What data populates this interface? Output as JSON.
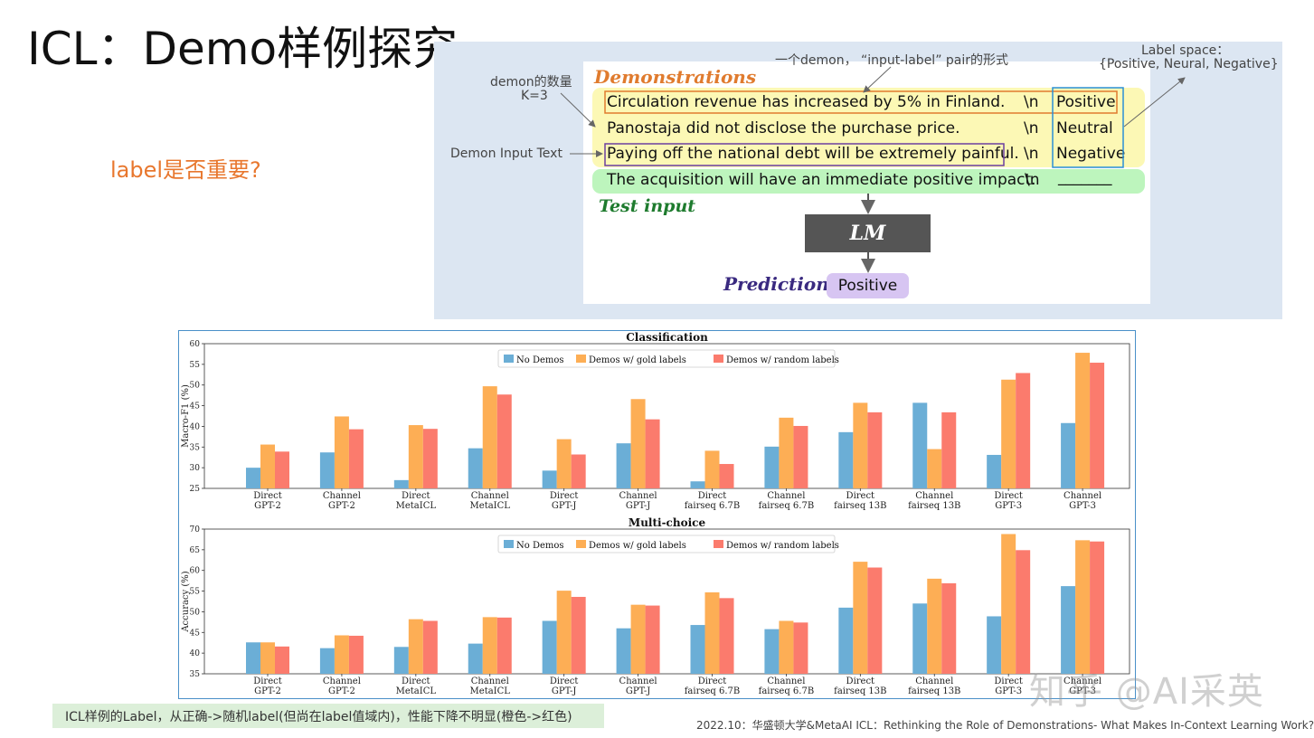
{
  "slide": {
    "title": "ICL：Demo样例探究",
    "question": "label是否重要?",
    "footer_note": "ICL样例的Label，从正确->随机label(但尚在label值域内)，性能下降不明显(橙色->红色)",
    "citation": "2022.10：华盛顿大学&MetaAI ICL：Rethinking the Role of Demonstrations- What Makes In-Context Learning Work?",
    "watermark": "知乎 @AI采英"
  },
  "diagram": {
    "annotations": {
      "pair_note": "一个demon， “input-label” pair的形式",
      "label_space_title": "Label space：",
      "label_space_values": "{Positive, Neural, Negative}",
      "demon_count_line1": "demon的数量",
      "demon_count_line2": "K=3",
      "demon_input_text": "Demon Input Text"
    },
    "demonstrations_heading": "Demonstrations",
    "test_input_heading": "Test input",
    "prediction_heading": "Prediction",
    "lm_label": "LM",
    "separator": "\\n",
    "demos": [
      {
        "text": "Circulation revenue has increased by 5% in Finland.",
        "label": "Positive"
      },
      {
        "text": "Panostaja did not disclose the purchase price.",
        "label": "Neutral"
      },
      {
        "text": "Paying off the national debt will be extremely painful.",
        "label": "Negative"
      }
    ],
    "test": {
      "text": "The acquisition will have an immediate positive impact.",
      "blank": "_______"
    },
    "prediction_value": "Positive"
  },
  "chart_data": [
    {
      "type": "bar",
      "title": "Classification",
      "ylabel": "Macro-F1 (%)",
      "ylim": [
        25,
        60
      ],
      "yticks": [
        25,
        30,
        35,
        40,
        45,
        50,
        55,
        60
      ],
      "categories": [
        "Direct\nGPT-2",
        "Channel\nGPT-2",
        "Direct\nMetaICL",
        "Channel\nMetaICL",
        "Direct\nGPT-J",
        "Channel\nGPT-J",
        "Direct\nfairseq 6.7B",
        "Channel\nfairseq 6.7B",
        "Direct\nfairseq 13B",
        "Channel\nfairseq 13B",
        "Direct\nGPT-3",
        "Channel\nGPT-3"
      ],
      "series": [
        {
          "name": "No Demos",
          "color": "#6BAED6",
          "values": [
            30.0,
            33.7,
            27.0,
            34.7,
            29.3,
            35.9,
            26.7,
            35.1,
            38.6,
            45.7,
            33.1,
            40.8
          ]
        },
        {
          "name": "Demos w/ gold labels",
          "color": "#FDAE55",
          "values": [
            35.6,
            42.4,
            40.3,
            49.7,
            36.9,
            46.6,
            34.1,
            42.1,
            45.7,
            34.5,
            51.3,
            57.8
          ]
        },
        {
          "name": "Demos w/ random labels",
          "color": "#FB7B6D",
          "values": [
            33.9,
            39.3,
            39.4,
            47.7,
            33.2,
            41.7,
            30.9,
            40.1,
            43.4,
            43.4,
            52.9,
            55.4
          ]
        }
      ],
      "legend": "top-center"
    },
    {
      "type": "bar",
      "title": "Multi-choice",
      "ylabel": "Accuracy (%)",
      "ylim": [
        35,
        70
      ],
      "yticks": [
        35,
        40,
        45,
        50,
        55,
        60,
        65,
        70
      ],
      "categories": [
        "Direct\nGPT-2",
        "Channel\nGPT-2",
        "Direct\nMetaICL",
        "Channel\nMetaICL",
        "Direct\nGPT-J",
        "Channel\nGPT-J",
        "Direct\nfairseq 6.7B",
        "Channel\nfairseq 6.7B",
        "Direct\nfairseq 13B",
        "Channel\nfairseq 13B",
        "Direct\nGPT-3",
        "Channel\nGPT-3"
      ],
      "series": [
        {
          "name": "No Demos",
          "color": "#6BAED6",
          "values": [
            42.6,
            41.2,
            41.5,
            42.3,
            47.8,
            46.0,
            46.8,
            45.8,
            51.0,
            52.0,
            48.9,
            56.2
          ]
        },
        {
          "name": "Demos w/ gold labels",
          "color": "#FDAE55",
          "values": [
            42.6,
            44.3,
            48.2,
            48.7,
            55.1,
            51.7,
            54.7,
            47.8,
            62.1,
            58.0,
            68.8,
            67.3
          ]
        },
        {
          "name": "Demos w/ random labels",
          "color": "#FB7B6D",
          "values": [
            41.6,
            44.2,
            47.8,
            48.6,
            53.6,
            51.5,
            53.3,
            47.4,
            60.7,
            56.9,
            64.9,
            67.0
          ]
        }
      ],
      "legend": "top-center"
    }
  ]
}
